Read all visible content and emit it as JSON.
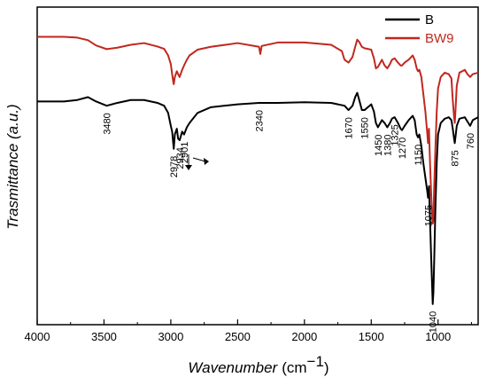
{
  "chart_data": {
    "type": "line",
    "title": "",
    "xlabel": "Wavenumber",
    "xunit": "(cm",
    "xunit_exp": "−1",
    "xunit_close": ")",
    "ylabel": "Trasmittance (a.u.)",
    "xlim": [
      4000,
      700
    ],
    "x_reversed": true,
    "ylim": [
      0,
      100
    ],
    "y_ticks_labeled": false,
    "grid": false,
    "legend_position": "top-right",
    "x_ticks": [
      4000,
      3500,
      3000,
      2500,
      2000,
      1500,
      1000
    ],
    "x_tick_labels": [
      "4000",
      "3500",
      "3000",
      "2500",
      "2000",
      "1500",
      "1000"
    ],
    "series": [
      {
        "name": "B",
        "color": "#000000",
        "points": [
          [
            4000,
            71.5
          ],
          [
            3800,
            71.5
          ],
          [
            3700,
            72.0
          ],
          [
            3620,
            73.0
          ],
          [
            3560,
            71.5
          ],
          [
            3480,
            70.0
          ],
          [
            3400,
            71.0
          ],
          [
            3300,
            72.0
          ],
          [
            3200,
            72.0
          ],
          [
            3100,
            71.0
          ],
          [
            3050,
            70.0
          ],
          [
            3020,
            67.5
          ],
          [
            3000,
            63.0
          ],
          [
            2990,
            61.0
          ],
          [
            2982,
            57.0
          ],
          [
            2978,
            55.0
          ],
          [
            2970,
            60.0
          ],
          [
            2955,
            62.0
          ],
          [
            2945,
            58.5
          ],
          [
            2934,
            58.0
          ],
          [
            2915,
            61.0
          ],
          [
            2901,
            60.0
          ],
          [
            2880,
            62.5
          ],
          [
            2860,
            64.0
          ],
          [
            2800,
            67.5
          ],
          [
            2700,
            69.5
          ],
          [
            2500,
            70.5
          ],
          [
            2340,
            71.0
          ],
          [
            2200,
            71.0
          ],
          [
            2000,
            71.2
          ],
          [
            1800,
            71.0
          ],
          [
            1700,
            70.0
          ],
          [
            1670,
            68.5
          ],
          [
            1640,
            70.0
          ],
          [
            1620,
            73.0
          ],
          [
            1605,
            74.5
          ],
          [
            1590,
            72.0
          ],
          [
            1570,
            68.5
          ],
          [
            1550,
            68.5
          ],
          [
            1500,
            70.5
          ],
          [
            1480,
            68.0
          ],
          [
            1465,
            64.0
          ],
          [
            1450,
            62.5
          ],
          [
            1420,
            65.0
          ],
          [
            1400,
            64.0
          ],
          [
            1380,
            62.5
          ],
          [
            1360,
            64.0
          ],
          [
            1345,
            65.5
          ],
          [
            1325,
            66.0
          ],
          [
            1300,
            64.0
          ],
          [
            1280,
            62.0
          ],
          [
            1270,
            61.5
          ],
          [
            1250,
            63.0
          ],
          [
            1220,
            65.0
          ],
          [
            1190,
            66.5
          ],
          [
            1175,
            65.0
          ],
          [
            1160,
            60.0
          ],
          [
            1150,
            59.0
          ],
          [
            1140,
            60.0
          ],
          [
            1125,
            56.0
          ],
          [
            1110,
            50.0
          ],
          [
            1095,
            45.0
          ],
          [
            1080,
            40.0
          ],
          [
            1075,
            38.0
          ],
          [
            1068,
            42.0
          ],
          [
            1060,
            30.0
          ],
          [
            1052,
            18.0
          ],
          [
            1045,
            8.0
          ],
          [
            1040,
            1.0
          ],
          [
            1035,
            5.0
          ],
          [
            1030,
            14.0
          ],
          [
            1020,
            34.0
          ],
          [
            1010,
            50.0
          ],
          [
            1000,
            60.0
          ],
          [
            980,
            64.0
          ],
          [
            950,
            65.5
          ],
          [
            920,
            66.0
          ],
          [
            900,
            65.0
          ],
          [
            890,
            62.0
          ],
          [
            880,
            58.5
          ],
          [
            875,
            57.0
          ],
          [
            870,
            59.0
          ],
          [
            860,
            63.0
          ],
          [
            840,
            65.5
          ],
          [
            800,
            66.0
          ],
          [
            780,
            64.5
          ],
          [
            760,
            63.0
          ],
          [
            740,
            65.0
          ],
          [
            700,
            66.0
          ]
        ]
      },
      {
        "name": "BW9",
        "color": "#c0281f",
        "points": [
          [
            4000,
            94.0
          ],
          [
            3800,
            94.0
          ],
          [
            3700,
            93.7
          ],
          [
            3620,
            92.8
          ],
          [
            3560,
            91.0
          ],
          [
            3480,
            89.7
          ],
          [
            3400,
            90.2
          ],
          [
            3300,
            91.2
          ],
          [
            3200,
            91.8
          ],
          [
            3100,
            90.6
          ],
          [
            3050,
            89.8
          ],
          [
            3020,
            87.5
          ],
          [
            3000,
            84.5
          ],
          [
            2990,
            81.0
          ],
          [
            2982,
            78.5
          ],
          [
            2978,
            77.5
          ],
          [
            2970,
            80.0
          ],
          [
            2955,
            82.0
          ],
          [
            2945,
            81.0
          ],
          [
            2934,
            80.0
          ],
          [
            2915,
            82.5
          ],
          [
            2901,
            84.0
          ],
          [
            2880,
            86.0
          ],
          [
            2860,
            87.5
          ],
          [
            2800,
            89.5
          ],
          [
            2700,
            90.5
          ],
          [
            2500,
            91.8
          ],
          [
            2340,
            90.5
          ],
          [
            2330,
            88.0
          ],
          [
            2320,
            90.8
          ],
          [
            2200,
            92.0
          ],
          [
            2000,
            92.0
          ],
          [
            1800,
            91.2
          ],
          [
            1720,
            89.0
          ],
          [
            1700,
            86.0
          ],
          [
            1670,
            85.0
          ],
          [
            1640,
            87.0
          ],
          [
            1620,
            90.5
          ],
          [
            1605,
            93.0
          ],
          [
            1590,
            92.2
          ],
          [
            1570,
            90.5
          ],
          [
            1550,
            90.0
          ],
          [
            1500,
            89.5
          ],
          [
            1480,
            86.5
          ],
          [
            1465,
            83.0
          ],
          [
            1450,
            83.5
          ],
          [
            1420,
            86.0
          ],
          [
            1400,
            84.0
          ],
          [
            1380,
            83.0
          ],
          [
            1360,
            84.5
          ],
          [
            1345,
            86.0
          ],
          [
            1325,
            86.5
          ],
          [
            1300,
            85.0
          ],
          [
            1280,
            84.0
          ],
          [
            1270,
            84.0
          ],
          [
            1250,
            85.0
          ],
          [
            1220,
            86.0
          ],
          [
            1190,
            87.5
          ],
          [
            1175,
            86.0
          ],
          [
            1160,
            83.0
          ],
          [
            1150,
            82.0
          ],
          [
            1140,
            82.5
          ],
          [
            1125,
            80.0
          ],
          [
            1110,
            74.0
          ],
          [
            1095,
            68.0
          ],
          [
            1080,
            60.0
          ],
          [
            1075,
            57.0
          ],
          [
            1068,
            62.0
          ],
          [
            1060,
            50.0
          ],
          [
            1052,
            40.0
          ],
          [
            1045,
            32.0
          ],
          [
            1040,
            29.0
          ],
          [
            1035,
            30.0
          ],
          [
            1030,
            40.0
          ],
          [
            1020,
            55.0
          ],
          [
            1010,
            68.0
          ],
          [
            1000,
            76.0
          ],
          [
            980,
            80.0
          ],
          [
            950,
            81.5
          ],
          [
            920,
            81.0
          ],
          [
            900,
            79.5
          ],
          [
            890,
            72.0
          ],
          [
            880,
            66.0
          ],
          [
            875,
            64.0
          ],
          [
            870,
            68.0
          ],
          [
            860,
            77.0
          ],
          [
            840,
            81.5
          ],
          [
            800,
            82.5
          ],
          [
            780,
            81.0
          ],
          [
            760,
            80.0
          ],
          [
            740,
            81.0
          ],
          [
            700,
            81.5
          ]
        ]
      }
    ],
    "annotations": [
      {
        "text": "3480",
        "x": 3480,
        "y": 70.0
      },
      {
        "text": "2978",
        "x": 2978,
        "y": 55.0
      },
      {
        "text": "2934",
        "x": 2934,
        "y": 58.0
      },
      {
        "text": "2901",
        "x": 2901,
        "y": 60.0
      },
      {
        "text": "2340",
        "x": 2340,
        "y": 71.0
      },
      {
        "text": "1670",
        "x": 1670,
        "y": 68.5
      },
      {
        "text": "1550",
        "x": 1550,
        "y": 68.5
      },
      {
        "text": "1450",
        "x": 1450,
        "y": 62.5
      },
      {
        "text": "1380",
        "x": 1380,
        "y": 62.5
      },
      {
        "text": "1325",
        "x": 1325,
        "y": 66.0
      },
      {
        "text": "1270",
        "x": 1270,
        "y": 61.5
      },
      {
        "text": "1150",
        "x": 1150,
        "y": 59.0
      },
      {
        "text": "1075",
        "x": 1075,
        "y": 38.0
      },
      {
        "text": "1040",
        "x": 1040,
        "y": 1.0
      },
      {
        "text": "875",
        "x": 875,
        "y": 57.0
      },
      {
        "text": "760",
        "x": 760,
        "y": 63.0
      }
    ]
  }
}
